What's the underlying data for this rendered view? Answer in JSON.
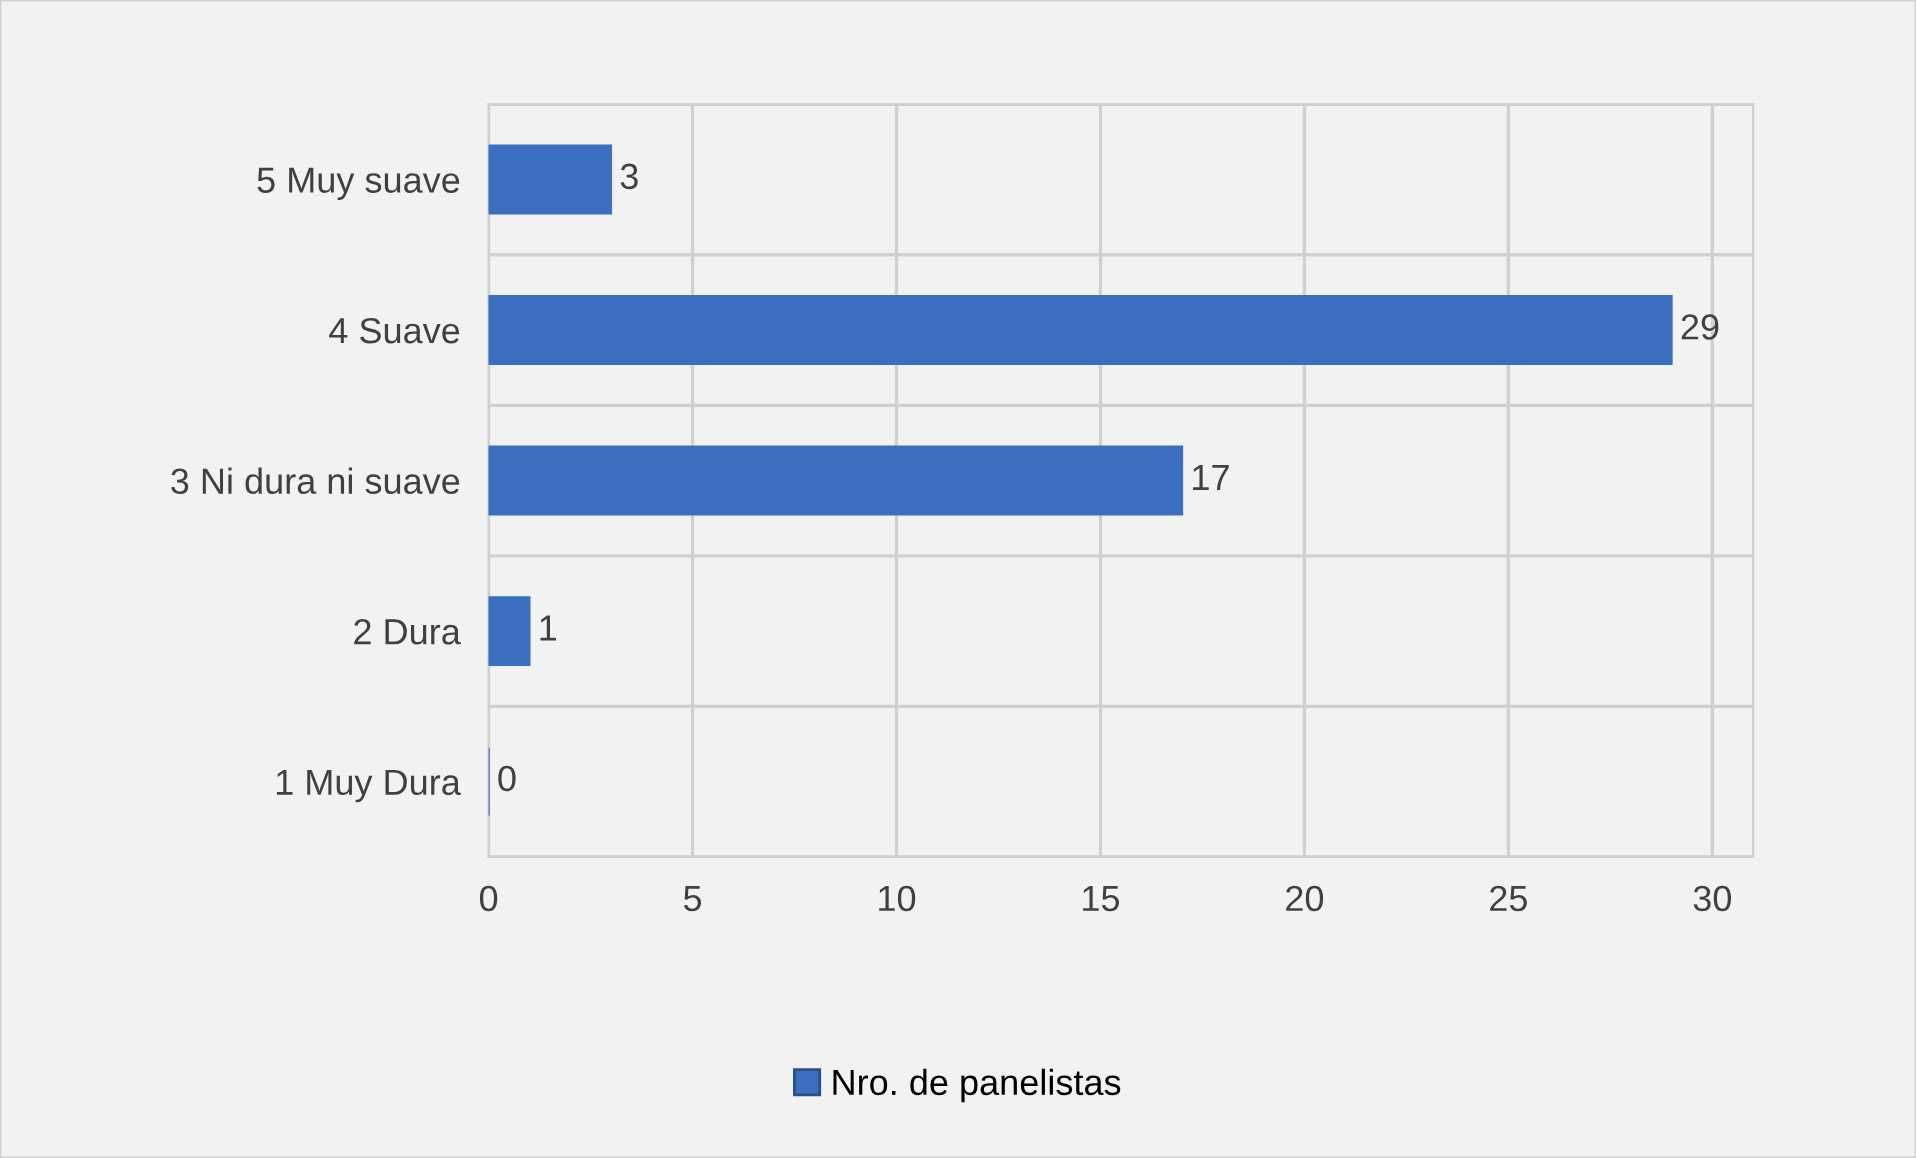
{
  "chart_data": {
    "type": "bar",
    "orientation": "horizontal",
    "categories": [
      "5 Muy suave",
      "4 Suave",
      "3 Ni dura ni suave",
      "2 Dura",
      "1 Muy Dura"
    ],
    "series": [
      {
        "name": "Nro. de panelistas",
        "color": "#3c6fc0",
        "values": [
          3,
          29,
          17,
          1,
          0
        ]
      }
    ],
    "xlim": [
      0,
      31
    ],
    "xticks": [
      0,
      5,
      10,
      15,
      20,
      25,
      30
    ],
    "grid": "x",
    "legend": "bottom",
    "data_labels": true
  }
}
